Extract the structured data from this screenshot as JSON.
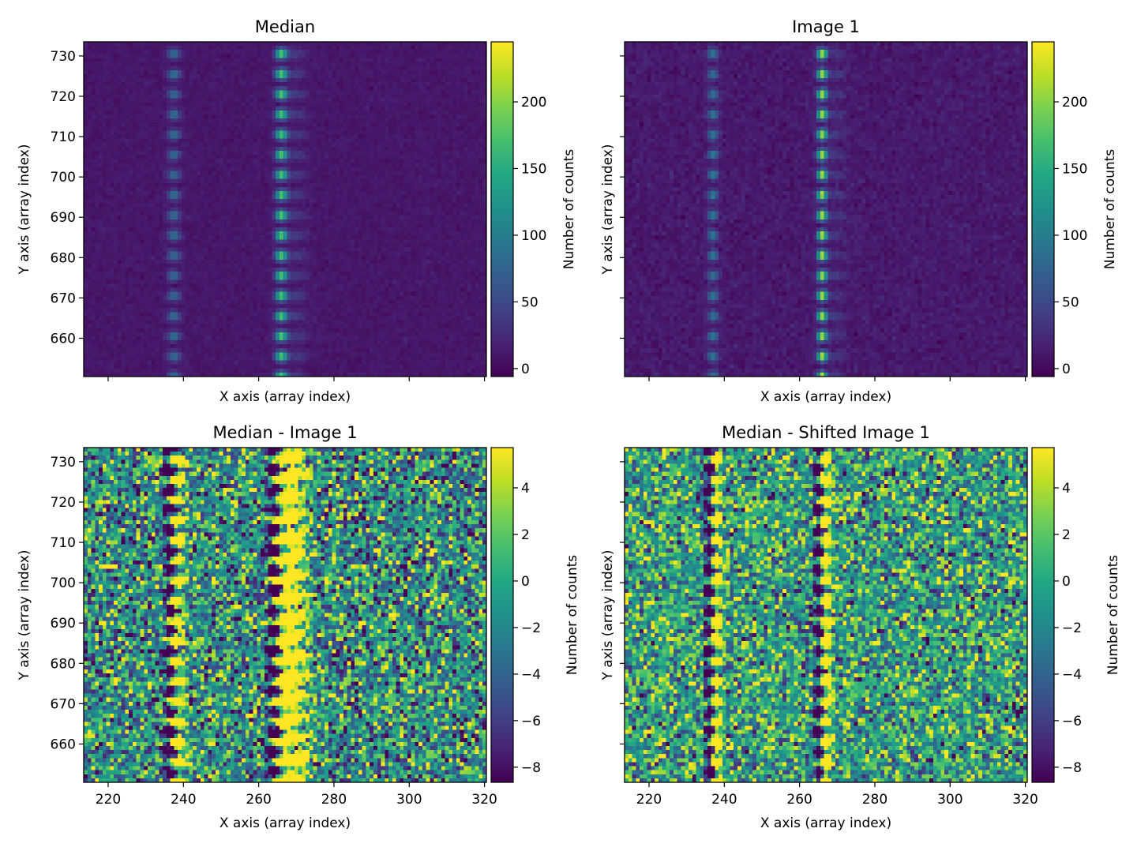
{
  "chart_data": [
    {
      "type": "heatmap",
      "title": "Median",
      "xlabel": "X axis (array index)",
      "ylabel": "Y axis (array index)",
      "xlim": [
        213.5,
        320.5
      ],
      "ylim": [
        650.5,
        733.5
      ],
      "xticks": [
        220,
        240,
        260,
        280,
        300,
        320
      ],
      "yticks": [
        660,
        670,
        680,
        690,
        700,
        710,
        720,
        730
      ],
      "show_xticklabels": false,
      "show_yticklabels": true,
      "colormap": "viridis",
      "colorbar": {
        "label": "Number of counts",
        "range": [
          -6,
          245
        ],
        "ticks": [
          0,
          50,
          100,
          150,
          200
        ]
      }
    },
    {
      "type": "heatmap",
      "title": "Image 1",
      "xlabel": "X axis (array index)",
      "ylabel": "Y axis (array index)",
      "xlim": [
        213.5,
        320.5
      ],
      "ylim": [
        650.5,
        733.5
      ],
      "xticks": [
        220,
        240,
        260,
        280,
        300,
        320
      ],
      "yticks": [
        660,
        670,
        680,
        690,
        700,
        710,
        720,
        730
      ],
      "show_xticklabels": false,
      "show_yticklabels": false,
      "colormap": "viridis",
      "colorbar": {
        "label": "Number of counts",
        "range": [
          -6,
          245
        ],
        "ticks": [
          0,
          50,
          100,
          150,
          200
        ]
      }
    },
    {
      "type": "heatmap",
      "title": "Median - Image 1",
      "xlabel": "X axis (array index)",
      "ylabel": "Y axis (array index)",
      "xlim": [
        213.5,
        320.5
      ],
      "ylim": [
        650.5,
        733.5
      ],
      "xticks": [
        220,
        240,
        260,
        280,
        300,
        320
      ],
      "yticks": [
        660,
        670,
        680,
        690,
        700,
        710,
        720,
        730
      ],
      "show_xticklabels": true,
      "show_yticklabels": true,
      "colormap": "viridis",
      "colorbar": {
        "label": "Number of counts",
        "range": [
          -8.65,
          5.73
        ],
        "ticks": [
          -8,
          -6,
          -4,
          -2,
          0,
          2,
          4
        ]
      }
    },
    {
      "type": "heatmap",
      "title": "Median - Shifted Image 1",
      "xlabel": "X axis (array index)",
      "ylabel": "Y axis (array index)",
      "xlim": [
        213.5,
        320.5
      ],
      "ylim": [
        650.5,
        733.5
      ],
      "xticks": [
        220,
        240,
        260,
        280,
        300,
        320
      ],
      "yticks": [
        660,
        670,
        680,
        690,
        700,
        710,
        720,
        730
      ],
      "show_xticklabels": true,
      "show_yticklabels": false,
      "colormap": "viridis",
      "colorbar": {
        "label": "Number of counts",
        "range": [
          -8.65,
          5.73
        ],
        "ticks": [
          -8,
          -6,
          -4,
          -2,
          0,
          2,
          4
        ]
      }
    }
  ]
}
